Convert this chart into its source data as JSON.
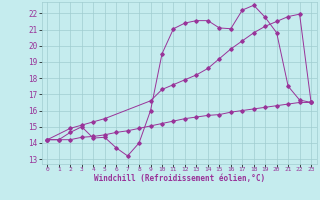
{
  "xlabel": "Windchill (Refroidissement éolien,°C)",
  "bg_color": "#c5ecee",
  "grid_color": "#a0cdd0",
  "line_color": "#993399",
  "xlim": [
    -0.5,
    23.5
  ],
  "ylim": [
    12.7,
    22.7
  ],
  "yticks": [
    13,
    14,
    15,
    16,
    17,
    18,
    19,
    20,
    21,
    22
  ],
  "xticks": [
    0,
    1,
    2,
    3,
    4,
    5,
    6,
    7,
    8,
    9,
    10,
    11,
    12,
    13,
    14,
    15,
    16,
    17,
    18,
    19,
    20,
    21,
    22,
    23
  ],
  "line1_x": [
    0,
    1,
    2,
    3,
    4,
    5,
    6,
    7,
    8,
    9,
    10,
    11,
    12,
    13,
    14,
    15,
    16,
    17,
    18,
    19,
    20,
    21,
    22,
    23
  ],
  "line1_y": [
    14.2,
    14.2,
    14.65,
    15.0,
    14.3,
    14.35,
    13.7,
    13.2,
    14.0,
    16.0,
    19.5,
    21.05,
    21.4,
    21.55,
    21.55,
    21.1,
    21.05,
    22.2,
    22.5,
    21.75,
    20.8,
    17.5,
    16.65,
    16.5
  ],
  "line2_x": [
    0,
    2,
    3,
    4,
    5,
    9,
    10,
    11,
    12,
    13,
    14,
    15,
    16,
    17,
    18,
    19,
    20,
    21,
    22,
    23
  ],
  "line2_y": [
    14.2,
    14.9,
    15.1,
    15.3,
    15.5,
    16.6,
    17.3,
    17.6,
    17.9,
    18.2,
    18.6,
    19.2,
    19.8,
    20.3,
    20.8,
    21.2,
    21.5,
    21.8,
    21.95,
    16.5
  ],
  "line3_x": [
    0,
    1,
    2,
    3,
    4,
    5,
    6,
    7,
    8,
    9,
    10,
    11,
    12,
    13,
    14,
    15,
    16,
    17,
    18,
    19,
    20,
    21,
    22,
    23
  ],
  "line3_y": [
    14.2,
    14.2,
    14.2,
    14.35,
    14.4,
    14.5,
    14.65,
    14.75,
    14.9,
    15.05,
    15.2,
    15.35,
    15.5,
    15.6,
    15.7,
    15.75,
    15.9,
    16.0,
    16.1,
    16.2,
    16.3,
    16.4,
    16.5,
    16.5
  ]
}
